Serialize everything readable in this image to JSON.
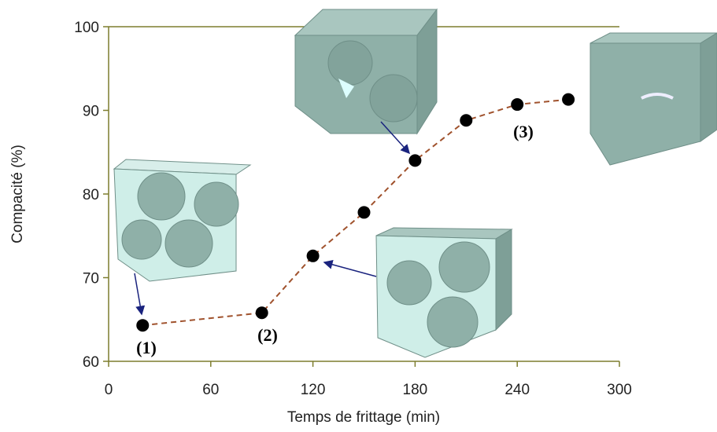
{
  "chart_data": {
    "type": "line",
    "x_label": "Temps de frittage (min)",
    "y_label": "Compacité (%)",
    "x": [
      20,
      90,
      120,
      150,
      180,
      210,
      240,
      270
    ],
    "series": [
      {
        "color": "#a0522d",
        "marker_color": "#000000",
        "values": [
          64.3,
          65.8,
          72.6,
          77.8,
          84.0,
          88.8,
          90.7,
          91.3
        ]
      }
    ],
    "xlim": [
      0,
      300
    ],
    "xticks": [
      0,
      60,
      120,
      180,
      240,
      300
    ],
    "ylim": [
      60,
      100
    ],
    "yticks": [
      60,
      70,
      80,
      90,
      100
    ],
    "annotations": [
      "(1)",
      "(2)",
      "(3)"
    ]
  }
}
